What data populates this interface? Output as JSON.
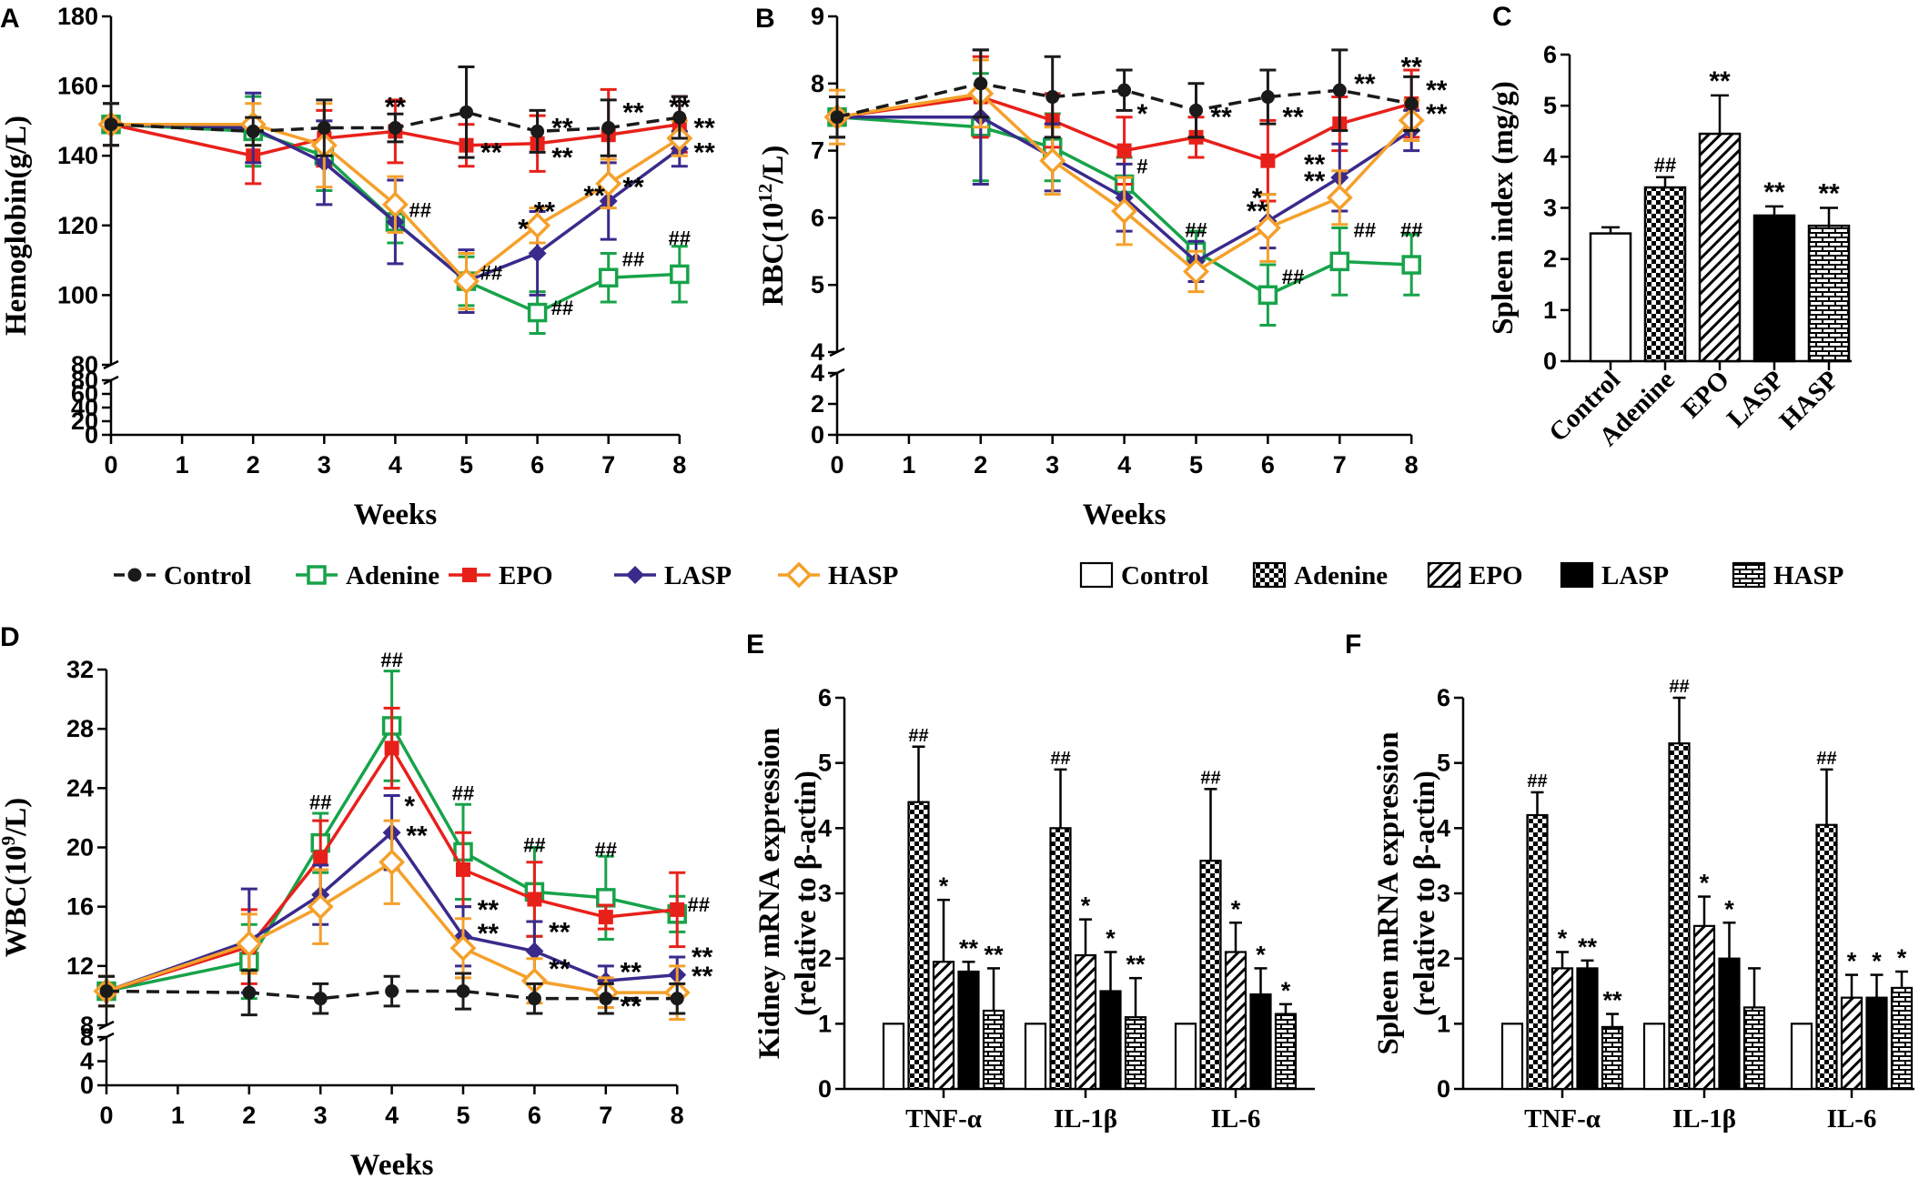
{
  "colors": {
    "Control": "#1a1a1a",
    "Adenine": "#17a34a",
    "EPO": "#e8201a",
    "LASP": "#3a2a8c",
    "HASP": "#f5a02a"
  },
  "legends": {
    "lines": [
      "Control",
      "Adenine",
      "EPO",
      "LASP",
      "HASP"
    ],
    "bars": [
      "Control",
      "Adenine",
      "EPO",
      "LASP",
      "HASP"
    ]
  },
  "chart_data": [
    {
      "id": "A",
      "label": "A",
      "type": "line",
      "xlabel": "Weeks",
      "ylabel": "Hemoglobin(g/L)",
      "x": [
        0,
        2,
        3,
        4,
        5,
        6,
        7,
        8
      ],
      "xticks": [
        "0",
        "1",
        "2",
        "3",
        "4",
        "5",
        "6",
        "7",
        "8"
      ],
      "ylim": [
        80,
        180
      ],
      "yticks": [
        "80",
        "100",
        "120",
        "140",
        "160",
        "180"
      ],
      "lower_ylim": [
        0,
        80
      ],
      "lower_yticks": [
        "0",
        "20",
        "40",
        "60",
        "80"
      ],
      "series": [
        {
          "name": "Control",
          "marker": "circle",
          "dashed": true,
          "values": [
            149,
            147,
            148,
            148,
            152.5,
            147,
            148,
            151
          ],
          "err": [
            6,
            4,
            8,
            4,
            13,
            6,
            8,
            6
          ]
        },
        {
          "name": "Adenine",
          "marker": "square",
          "values": [
            149,
            147,
            140,
            121,
            104,
            95,
            105,
            106
          ],
          "err": [
            6,
            10,
            10,
            6,
            7,
            6,
            7,
            8
          ]
        },
        {
          "name": "EPO",
          "marker": "square-filled",
          "values": [
            149,
            140,
            145,
            147,
            143,
            143.5,
            146,
            149
          ],
          "err": [
            6,
            8,
            8,
            9,
            6,
            8,
            13,
            8
          ]
        },
        {
          "name": "LASP",
          "marker": "diamond-filled",
          "values": [
            149,
            148,
            138,
            121,
            104,
            112,
            127,
            142
          ],
          "err": [
            6,
            10,
            12,
            12,
            9,
            12,
            11,
            5
          ]
        },
        {
          "name": "HASP",
          "marker": "diamond-open",
          "values": [
            149,
            149,
            143,
            126,
            104,
            120,
            132,
            145
          ],
          "err": [
            6,
            6,
            12,
            8,
            8,
            5,
            7,
            5
          ]
        }
      ],
      "annotations": [
        {
          "text": "**",
          "x": 4,
          "y": 154
        },
        {
          "text": "##",
          "x": 4.35,
          "y": 125
        },
        {
          "text": "**",
          "x": 5.35,
          "y": 141
        },
        {
          "text": "##",
          "x": 5.35,
          "y": 107
        },
        {
          "text": "**",
          "x": 6.35,
          "y": 148
        },
        {
          "text": "**",
          "x": 6.35,
          "y": 139.5
        },
        {
          "text": "*",
          "x": 5.8,
          "y": 119
        },
        {
          "text": "**",
          "x": 6.1,
          "y": 124
        },
        {
          "text": "##",
          "x": 6.35,
          "y": 97
        },
        {
          "text": "**",
          "x": 7.35,
          "y": 152.5
        },
        {
          "text": "**",
          "x": 6.8,
          "y": 128.5
        },
        {
          "text": "**",
          "x": 7.35,
          "y": 131
        },
        {
          "text": "##",
          "x": 7.35,
          "y": 111
        },
        {
          "text": "**",
          "x": 8,
          "y": 154
        },
        {
          "text": "##",
          "x": 8,
          "y": 117
        },
        {
          "text": "**",
          "x": 8.35,
          "y": 148
        },
        {
          "text": "**",
          "x": 8.35,
          "y": 141
        }
      ]
    },
    {
      "id": "B",
      "label": "B",
      "type": "line",
      "xlabel": "Weeks",
      "ylabel": "RBC(10",
      "ylabel_sup": "12",
      "ylabel_end": "/L)",
      "x": [
        0,
        2,
        3,
        4,
        5,
        6,
        7,
        8
      ],
      "xticks": [
        "0",
        "1",
        "2",
        "3",
        "4",
        "5",
        "6",
        "7",
        "8"
      ],
      "ylim": [
        4,
        9
      ],
      "yticks": [
        "4",
        "5",
        "6",
        "7",
        "8",
        "9"
      ],
      "lower_ylim": [
        0,
        4
      ],
      "lower_yticks": [
        "0",
        "2",
        "4"
      ],
      "series": [
        {
          "name": "Control",
          "marker": "circle",
          "dashed": true,
          "values": [
            7.5,
            8.0,
            7.8,
            7.9,
            7.6,
            7.8,
            7.9,
            7.7
          ],
          "err": [
            0.3,
            0.5,
            0.6,
            0.3,
            0.4,
            0.4,
            0.6,
            0.4
          ]
        },
        {
          "name": "Adenine",
          "marker": "square",
          "values": [
            7.5,
            7.35,
            7.05,
            6.5,
            5.5,
            4.85,
            5.35,
            5.3
          ],
          "err": [
            0.3,
            0.8,
            0.5,
            0.4,
            0.3,
            0.45,
            0.5,
            0.45
          ]
        },
        {
          "name": "EPO",
          "marker": "square-filled",
          "values": [
            7.5,
            7.8,
            7.45,
            7.0,
            7.2,
            6.85,
            7.4,
            7.7
          ],
          "err": [
            0.3,
            0.6,
            0.4,
            0.5,
            0.3,
            0.6,
            0.4,
            0.5
          ]
        },
        {
          "name": "LASP",
          "marker": "diamond-filled",
          "values": [
            7.5,
            7.5,
            6.9,
            6.3,
            5.35,
            5.95,
            6.6,
            7.3
          ],
          "err": [
            0.3,
            1.0,
            0.5,
            0.5,
            0.3,
            0.4,
            0.5,
            0.3
          ]
        },
        {
          "name": "HASP",
          "marker": "diamond-open",
          "values": [
            7.5,
            7.85,
            6.85,
            6.1,
            5.2,
            5.85,
            6.3,
            7.45
          ],
          "err": [
            0.4,
            0.5,
            0.5,
            0.5,
            0.3,
            0.5,
            0.4,
            0.3
          ]
        }
      ],
      "annotations": [
        {
          "text": "*",
          "x": 4.25,
          "y": 7.55
        },
        {
          "text": "#",
          "x": 4.25,
          "y": 6.8
        },
        {
          "text": "##",
          "x": 5,
          "y": 5.85
        },
        {
          "text": "**",
          "x": 5.35,
          "y": 7.5
        },
        {
          "text": "**",
          "x": 6.35,
          "y": 7.5
        },
        {
          "text": "*",
          "x": 5.85,
          "y": 6.3
        },
        {
          "text": "**",
          "x": 5.85,
          "y": 6.1
        },
        {
          "text": "##",
          "x": 6.35,
          "y": 5.15
        },
        {
          "text": "**",
          "x": 6.65,
          "y": 6.8
        },
        {
          "text": "**",
          "x": 6.65,
          "y": 6.55
        },
        {
          "text": "##",
          "x": 7.35,
          "y": 5.85
        },
        {
          "text": "**",
          "x": 7.35,
          "y": 8.0
        },
        {
          "text": "**",
          "x": 8,
          "y": 8.25
        },
        {
          "text": "##",
          "x": 8,
          "y": 5.85
        },
        {
          "text": "**",
          "x": 8.35,
          "y": 7.9
        },
        {
          "text": "**",
          "x": 8.35,
          "y": 7.55
        }
      ]
    },
    {
      "id": "C",
      "label": "C",
      "type": "bar",
      "ylabel": "Spleen index (mg/g)",
      "categories": [
        "Control",
        "Adenine",
        "EPO",
        "LASP",
        "HASP"
      ],
      "patterns": [
        "white",
        "checker",
        "diag",
        "black",
        "brick"
      ],
      "values": [
        2.5,
        3.4,
        4.45,
        2.85,
        2.65
      ],
      "err": [
        0.12,
        0.2,
        0.75,
        0.18,
        0.35
      ],
      "ylim": [
        0,
        6
      ],
      "yticks": [
        "0",
        "1",
        "2",
        "3",
        "4",
        "5",
        "6"
      ],
      "marks": [
        "",
        "##",
        "**",
        "**",
        "**"
      ]
    },
    {
      "id": "D",
      "label": "D",
      "type": "line",
      "xlabel": "Weeks",
      "ylabel": "WBC(10",
      "ylabel_sup": "9",
      "ylabel_end": "/L)",
      "x": [
        0,
        2,
        3,
        4,
        5,
        6,
        7,
        8
      ],
      "xticks": [
        "0",
        "1",
        "2",
        "3",
        "4",
        "5",
        "6",
        "7",
        "8"
      ],
      "ylim": [
        8,
        32
      ],
      "yticks": [
        "8",
        "12",
        "16",
        "20",
        "24",
        "28",
        "32"
      ],
      "lower_ylim": [
        0,
        8
      ],
      "lower_yticks": [
        "0",
        "4",
        "8"
      ],
      "series": [
        {
          "name": "Control",
          "marker": "circle",
          "dashed": true,
          "values": [
            10.3,
            10.2,
            9.8,
            10.3,
            10.3,
            9.8,
            9.8,
            9.8
          ],
          "err": [
            1.0,
            1.5,
            1.0,
            1.0,
            1.2,
            1.0,
            1.0,
            1.0
          ]
        },
        {
          "name": "Adenine",
          "marker": "square",
          "values": [
            10.3,
            12.3,
            20.3,
            28.2,
            19.7,
            17.0,
            16.6,
            15.5
          ],
          "err": [
            1.0,
            2.5,
            2.0,
            3.7,
            3.2,
            3.0,
            2.8,
            1.2
          ]
        },
        {
          "name": "EPO",
          "marker": "square-filled",
          "values": [
            10.3,
            13.3,
            19.3,
            26.7,
            18.5,
            16.5,
            15.3,
            15.8
          ],
          "err": [
            1.0,
            2.5,
            2.5,
            2.7,
            2.5,
            2.5,
            0.8,
            2.5
          ]
        },
        {
          "name": "LASP",
          "marker": "diamond-filled",
          "values": [
            10.3,
            13.7,
            16.8,
            21.0,
            14.0,
            13.0,
            11.0,
            11.4
          ],
          "err": [
            1.0,
            3.5,
            2.0,
            2.5,
            2.0,
            2.0,
            1.0,
            1.2
          ]
        },
        {
          "name": "HASP",
          "marker": "diamond-open",
          "values": [
            10.3,
            13.5,
            16.0,
            19.0,
            13.2,
            11.0,
            10.2,
            10.2
          ],
          "err": [
            1.0,
            2.0,
            2.5,
            2.8,
            2.0,
            1.5,
            1.0,
            1.8
          ]
        }
      ],
      "annotations": [
        {
          "text": "##",
          "x": 3,
          "y": 23.2
        },
        {
          "text": "##",
          "x": 4,
          "y": 32.8
        },
        {
          "text": "*",
          "x": 4.25,
          "y": 22.8
        },
        {
          "text": "**",
          "x": 4.35,
          "y": 20.8
        },
        {
          "text": "##",
          "x": 5,
          "y": 23.8
        },
        {
          "text": "**",
          "x": 5.35,
          "y": 15.8
        },
        {
          "text": "**",
          "x": 5.35,
          "y": 14.2
        },
        {
          "text": "##",
          "x": 6,
          "y": 20.3
        },
        {
          "text": "**",
          "x": 6.35,
          "y": 14.3
        },
        {
          "text": "**",
          "x": 6.35,
          "y": 11.8
        },
        {
          "text": "##",
          "x": 7,
          "y": 20.0
        },
        {
          "text": "**",
          "x": 7.35,
          "y": 11.6
        },
        {
          "text": "**",
          "x": 7.35,
          "y": 9.3
        },
        {
          "text": "##",
          "x": 8.3,
          "y": 16.3
        },
        {
          "text": "**",
          "x": 8.35,
          "y": 12.6
        },
        {
          "text": "**",
          "x": 8.35,
          "y": 11.3
        }
      ]
    },
    {
      "id": "E",
      "label": "E",
      "type": "bar",
      "ylabel_line1": "Kidney mRNA expression",
      "ylabel_line2": "(relative to β-actin)",
      "categories": [
        "TNF-α",
        "IL-1β",
        "IL-6"
      ],
      "ylim": [
        0,
        6
      ],
      "yticks": [
        "0",
        "1",
        "2",
        "3",
        "4",
        "5",
        "6"
      ],
      "series": [
        {
          "name": "Control",
          "pattern": "white",
          "values": [
            1,
            1,
            1
          ],
          "err": [
            0,
            0,
            0
          ],
          "marks": [
            "",
            "",
            ""
          ]
        },
        {
          "name": "Adenine",
          "pattern": "checker",
          "values": [
            4.4,
            4.0,
            3.5
          ],
          "err": [
            0.85,
            0.9,
            1.1
          ],
          "marks": [
            "##",
            "##",
            "##"
          ]
        },
        {
          "name": "EPO",
          "pattern": "diag",
          "values": [
            1.95,
            2.05,
            2.1
          ],
          "err": [
            0.95,
            0.55,
            0.45
          ],
          "marks": [
            "*",
            "*",
            "*"
          ]
        },
        {
          "name": "LASP",
          "pattern": "black",
          "values": [
            1.8,
            1.5,
            1.45
          ],
          "err": [
            0.15,
            0.6,
            0.4
          ],
          "marks": [
            "**",
            "*",
            "*"
          ]
        },
        {
          "name": "HASP",
          "pattern": "brick",
          "values": [
            1.2,
            1.1,
            1.15
          ],
          "err": [
            0.65,
            0.6,
            0.15
          ],
          "marks": [
            "**",
            "**",
            "*"
          ]
        }
      ]
    },
    {
      "id": "F",
      "label": "F",
      "type": "bar",
      "ylabel_line1": "Spleen mRNA expression",
      "ylabel_line2": "(relative to β-actin)",
      "categories": [
        "TNF-α",
        "IL-1β",
        "IL-6"
      ],
      "ylim": [
        0,
        6
      ],
      "yticks": [
        "0",
        "1",
        "2",
        "3",
        "4",
        "5",
        "6"
      ],
      "series": [
        {
          "name": "Control",
          "pattern": "white",
          "values": [
            1,
            1,
            1
          ],
          "err": [
            0,
            0,
            0
          ],
          "marks": [
            "",
            "",
            ""
          ]
        },
        {
          "name": "Adenine",
          "pattern": "checker",
          "values": [
            4.2,
            5.3,
            4.05
          ],
          "err": [
            0.35,
            0.7,
            0.85
          ],
          "marks": [
            "##",
            "##",
            "##"
          ]
        },
        {
          "name": "EPO",
          "pattern": "diag",
          "values": [
            1.85,
            2.5,
            1.4
          ],
          "err": [
            0.25,
            0.45,
            0.35
          ],
          "marks": [
            "*",
            "*",
            "*"
          ]
        },
        {
          "name": "LASP",
          "pattern": "black",
          "values": [
            1.85,
            2.0,
            1.4
          ],
          "err": [
            0.12,
            0.55,
            0.35
          ],
          "marks": [
            "**",
            "*",
            "*"
          ]
        },
        {
          "name": "HASP",
          "pattern": "brick",
          "values": [
            0.95,
            1.25,
            1.55
          ],
          "err": [
            0.2,
            0.6,
            0.25
          ],
          "marks": [
            "**",
            "",
            "*"
          ]
        }
      ]
    }
  ]
}
